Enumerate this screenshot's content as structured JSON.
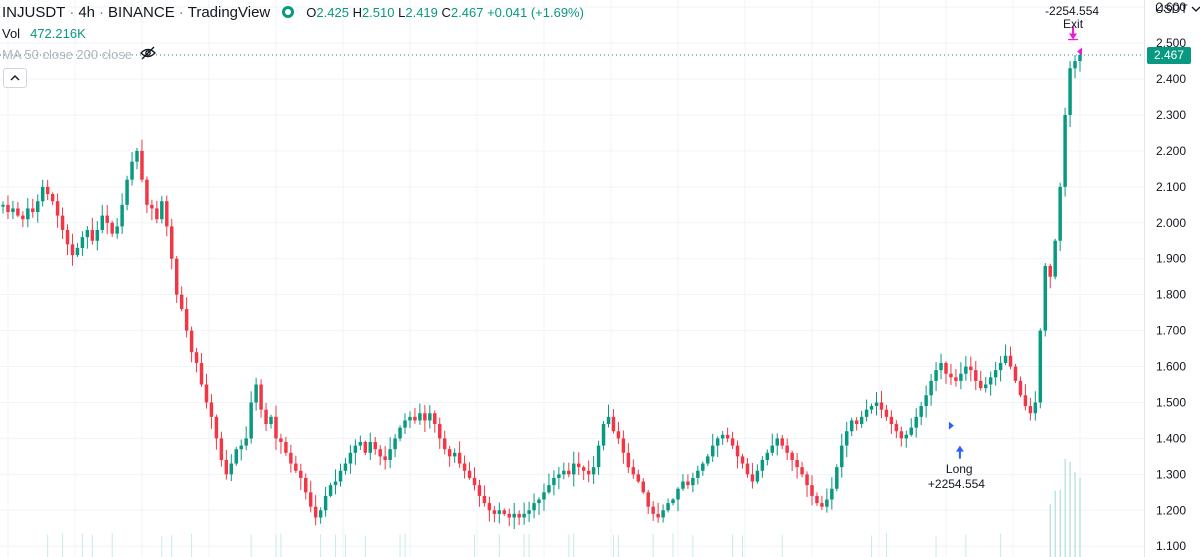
{
  "header": {
    "symbol": "INJUSDT",
    "interval": "4h",
    "exchange": "BINANCE",
    "provider": "TradingView",
    "ohlc": {
      "o_label": "O",
      "o": "2.425",
      "h_label": "H",
      "h": "2.510",
      "l_label": "L",
      "l": "2.419",
      "c_label": "C",
      "c": "2.467",
      "change": "+0.041 (+1.69%)"
    }
  },
  "volume": {
    "label": "Vol",
    "value": "472.216K"
  },
  "indicator": {
    "label": "MA 50 close 200 close"
  },
  "axis": {
    "unit": "USDT"
  },
  "last_price": "2.467",
  "trades": {
    "entry": {
      "label": "Long",
      "pnl": "+2254.554"
    },
    "exit": {
      "label": "Exit",
      "pnl": "-2254.554"
    }
  },
  "colors": {
    "up": "#089981",
    "down": "#f23645",
    "entry_arrow": "#2962ff",
    "exit_arrow": "#e91ed4"
  },
  "icons": {
    "status": "status-dot-icon",
    "visibility": "eye-off-icon",
    "collapse": "chevron-up-icon",
    "unit_dropdown": "chevron-down-icon"
  },
  "chart_data": {
    "type": "candlestick",
    "y_ticks": [
      "2.600",
      "2.500",
      "2.400",
      "2.300",
      "2.200",
      "2.100",
      "2.000",
      "1.900",
      "1.800",
      "1.700",
      "1.600",
      "1.500",
      "1.400",
      "1.300",
      "1.200",
      "1.100"
    ],
    "ylim": [
      1.07,
      2.62
    ],
    "grid": true,
    "last_close": 2.467,
    "series": [
      {
        "values": [
          2.05,
          2.03,
          2.04,
          2.02,
          2.01,
          2.04,
          2.03,
          2.06,
          2.1,
          2.08,
          2.06,
          2.02,
          1.98,
          1.94,
          1.91,
          1.93,
          1.96,
          1.98,
          1.95,
          1.98,
          2.02,
          2.0,
          1.97,
          1.99,
          2.05,
          2.12,
          2.17,
          2.2,
          2.12,
          2.05,
          2.04,
          2.01,
          2.06,
          1.99,
          1.9,
          1.8,
          1.76,
          1.7,
          1.64,
          1.61,
          1.55,
          1.5,
          1.46,
          1.4,
          1.34,
          1.3,
          1.33,
          1.37,
          1.38,
          1.4,
          1.5,
          1.55,
          1.48,
          1.44,
          1.46,
          1.4,
          1.39,
          1.36,
          1.33,
          1.31,
          1.29,
          1.25,
          1.21,
          1.18,
          1.2,
          1.24,
          1.27,
          1.28,
          1.31,
          1.33,
          1.36,
          1.38,
          1.39,
          1.36,
          1.39,
          1.37,
          1.35,
          1.34,
          1.37,
          1.4,
          1.43,
          1.45,
          1.46,
          1.45,
          1.47,
          1.45,
          1.47,
          1.44,
          1.4,
          1.37,
          1.35,
          1.36,
          1.33,
          1.31,
          1.29,
          1.27,
          1.24,
          1.22,
          1.2,
          1.19,
          1.2,
          1.19,
          1.18,
          1.19,
          1.18,
          1.19,
          1.2,
          1.22,
          1.23,
          1.25,
          1.27,
          1.29,
          1.3,
          1.31,
          1.3,
          1.33,
          1.32,
          1.31,
          1.3,
          1.32,
          1.38,
          1.44,
          1.46,
          1.42,
          1.4,
          1.36,
          1.32,
          1.3,
          1.28,
          1.25,
          1.21,
          1.19,
          1.18,
          1.2,
          1.22,
          1.23,
          1.26,
          1.28,
          1.27,
          1.29,
          1.31,
          1.33,
          1.35,
          1.38,
          1.4,
          1.41,
          1.4,
          1.38,
          1.35,
          1.33,
          1.3,
          1.28,
          1.31,
          1.34,
          1.36,
          1.38,
          1.4,
          1.38,
          1.36,
          1.34,
          1.32,
          1.3,
          1.27,
          1.24,
          1.22,
          1.21,
          1.23,
          1.26,
          1.32,
          1.38,
          1.42,
          1.45,
          1.44,
          1.46,
          1.48,
          1.49,
          1.5,
          1.48,
          1.46,
          1.44,
          1.42,
          1.4,
          1.41,
          1.43,
          1.46,
          1.49,
          1.52,
          1.56,
          1.59,
          1.61,
          1.58,
          1.57,
          1.56,
          1.58,
          1.6,
          1.59,
          1.56,
          1.54,
          1.55,
          1.57,
          1.59,
          1.61,
          1.63,
          1.6,
          1.56,
          1.52,
          1.49,
          1.47,
          1.5,
          1.7,
          1.88,
          1.85,
          1.95,
          2.1,
          2.3,
          2.43,
          2.45,
          2.467
        ]
      }
    ],
    "annotations": [
      {
        "text": "Long +2254.554",
        "x_index": 192,
        "price": 1.38
      },
      {
        "text": "-2254.554 Exit",
        "x_index": 216,
        "price": 2.51
      }
    ]
  }
}
